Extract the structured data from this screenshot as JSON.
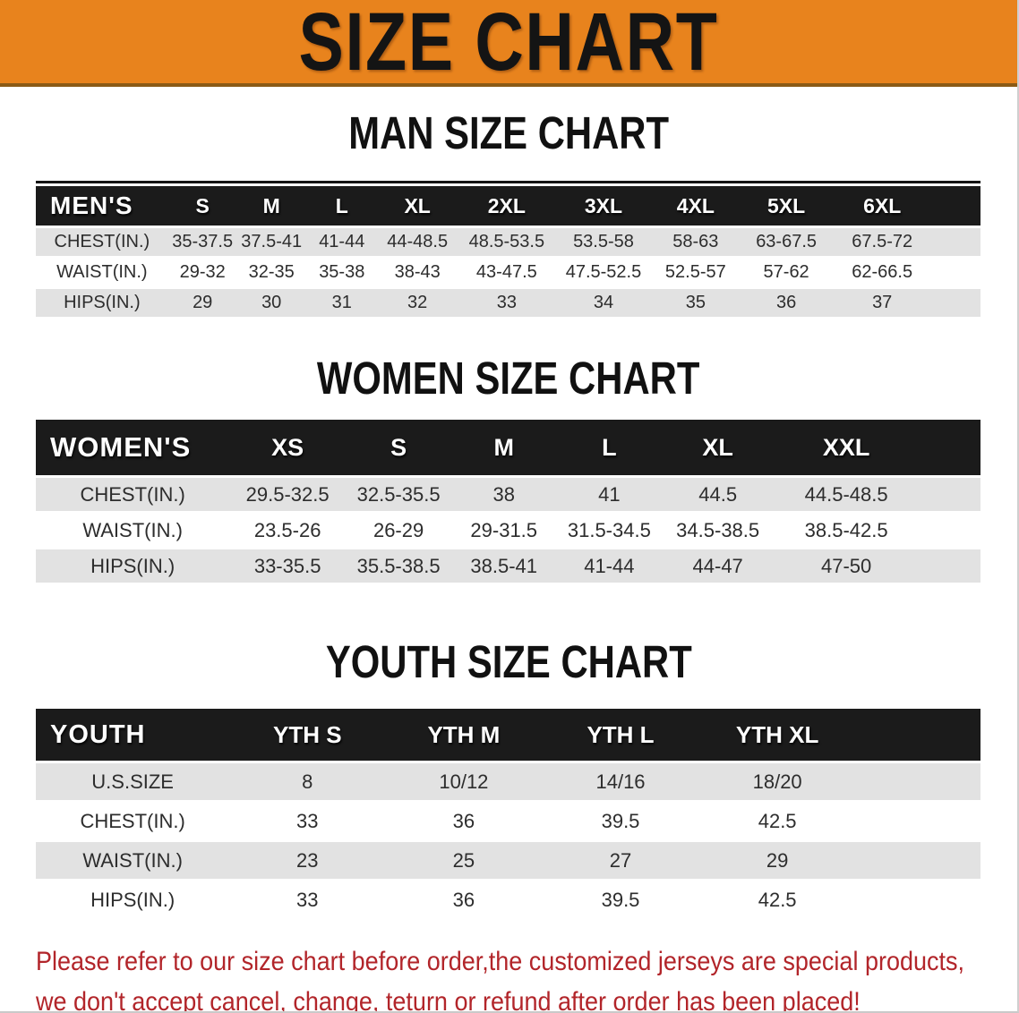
{
  "banner": {
    "title": "SIZE CHART",
    "bg_color": "#e8831d",
    "text_color": "#141414"
  },
  "colors": {
    "table_header_bg": "#1b1b1b",
    "row_gray": "#e2e2e2",
    "row_white": "#ffffff",
    "disclaimer_red": "#b2252a"
  },
  "sections": [
    {
      "heading": "MAN SIZE CHART",
      "table": {
        "header_label": "MEN'S",
        "columns": [
          "S",
          "M",
          "L",
          "XL",
          "2XL",
          "3XL",
          "4XL",
          "5XL",
          "6XL"
        ],
        "rows": [
          {
            "label": "CHEST(IN.)",
            "values": [
              "35-37.5",
              "37.5-41",
              "41-44",
              "44-48.5",
              "48.5-53.5",
              "53.5-58",
              "58-63",
              "63-67.5",
              "67.5-72"
            ]
          },
          {
            "label": "WAIST(IN.)",
            "values": [
              "29-32",
              "32-35",
              "35-38",
              "38-43",
              "43-47.5",
              "47.5-52.5",
              "52.5-57",
              "57-62",
              "62-66.5"
            ]
          },
          {
            "label": "HIPS(IN.)",
            "values": [
              "29",
              "30",
              "31",
              "32",
              "33",
              "34",
              "35",
              "36",
              "37"
            ]
          }
        ]
      }
    },
    {
      "heading": "WOMEN SIZE CHART",
      "table": {
        "header_label": "WOMEN'S",
        "columns": [
          "XS",
          "S",
          "M",
          "L",
          "XL",
          "XXL"
        ],
        "rows": [
          {
            "label": "CHEST(IN.)",
            "values": [
              "29.5-32.5",
              "32.5-35.5",
              "38",
              "41",
              "44.5",
              "44.5-48.5"
            ]
          },
          {
            "label": "WAIST(IN.)",
            "values": [
              "23.5-26",
              "26-29",
              "29-31.5",
              "31.5-34.5",
              "34.5-38.5",
              "38.5-42.5"
            ]
          },
          {
            "label": "HIPS(IN.)",
            "values": [
              "33-35.5",
              "35.5-38.5",
              "38.5-41",
              "41-44",
              "44-47",
              "47-50"
            ]
          }
        ]
      }
    },
    {
      "heading": "YOUTH SIZE CHART",
      "table": {
        "header_label": "YOUTH",
        "columns": [
          "YTH S",
          "YTH M",
          "YTH L",
          "YTH XL"
        ],
        "rows": [
          {
            "label": "U.S.SIZE",
            "values": [
              "8",
              "10/12",
              "14/16",
              "18/20"
            ]
          },
          {
            "label": "CHEST(IN.)",
            "values": [
              "33",
              "36",
              "39.5",
              "42.5"
            ]
          },
          {
            "label": "WAIST(IN.)",
            "values": [
              "23",
              "25",
              "27",
              "29"
            ]
          },
          {
            "label": "HIPS(IN.)",
            "values": [
              "33",
              "36",
              "39.5",
              "42.5"
            ]
          }
        ]
      }
    }
  ],
  "disclaimer": {
    "line1": "Please refer to our size chart before order,the customized jerseys are special products,",
    "line2": "we don't accept cancel, change, teturn or refund after order has been placed!"
  }
}
